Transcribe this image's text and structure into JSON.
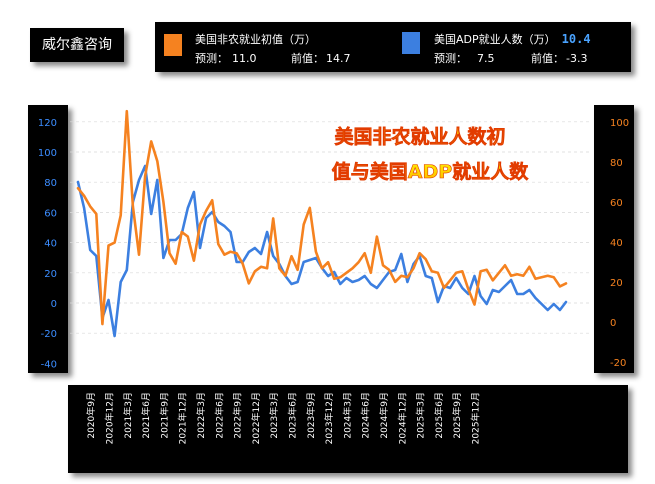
{
  "brand": "威尔鑫咨询",
  "legend": {
    "nfp": {
      "name": "美国非农就业初值（万）",
      "forecast_label": "预测：",
      "forecast": "11.0",
      "previous_label": "前值：",
      "previous": "14.7",
      "color": "#f58220"
    },
    "adp": {
      "name": "美国ADP就业人数（万）",
      "value": "10.4",
      "forecast_label": "预测：",
      "forecast": "7.5",
      "previous_label": "前值：",
      "previous": "-3.3",
      "color": "#3c7fe0"
    }
  },
  "chart_data": {
    "type": "line",
    "title": "美国非农就业人数初值与美国ADP就业人数",
    "x_tick_labels": [
      "2020年9月",
      "2020年12月",
      "2021年3月",
      "2021年6月",
      "2021年9月",
      "2021年12月",
      "2022年3月",
      "2022年6月",
      "2022年9月",
      "2022年12月",
      "2023年3月",
      "2023年6月",
      "2023年9月",
      "2023年12月",
      "2024年3月",
      "2024年6月",
      "2024年9月",
      "2024年12月",
      "2025年3月",
      "2025年6月",
      "2025年9月",
      "2025年12月"
    ],
    "x_start": "2020-07",
    "y_left": {
      "min": -40,
      "max": 120,
      "ticks": [
        -40,
        -20,
        0,
        20,
        40,
        60,
        80,
        100,
        120
      ]
    },
    "y_right": {
      "min": -20,
      "max": 100,
      "ticks": [
        -20,
        0,
        20,
        40,
        60,
        80,
        100
      ]
    },
    "grid": true,
    "series": [
      {
        "name": "美国非农就业初值（万）",
        "axis": "left",
        "color": "#f58220",
        "values": [
          76,
          71,
          64,
          59,
          -14,
          38,
          40,
          58,
          127,
          64,
          32,
          84,
          107,
          94,
          67,
          33,
          26,
          47,
          44,
          28,
          52,
          61,
          68,
          39,
          32,
          34,
          33,
          26,
          13,
          21,
          24,
          23,
          56,
          23,
          18,
          31,
          22,
          52,
          63,
          34,
          23,
          27,
          16,
          17,
          20,
          23,
          27,
          33,
          20,
          44,
          25,
          22,
          14,
          18,
          17,
          23,
          33,
          29,
          21,
          20,
          10,
          15,
          20,
          21,
          9,
          -1,
          21,
          22,
          15,
          20,
          25,
          18,
          19,
          18,
          24,
          16,
          17,
          18,
          17,
          11,
          13
        ]
      },
      {
        "name": "美国ADP就业人数（万）",
        "axis": "right",
        "color": "#3c7fe0",
        "values": [
          70,
          57,
          36,
          33,
          2,
          11,
          -7,
          20,
          26,
          60,
          71,
          78,
          54,
          71,
          32,
          41,
          41,
          44,
          57,
          65,
          37,
          52,
          55,
          50,
          48,
          45,
          30,
          30,
          35,
          37,
          34,
          45,
          33,
          29,
          23,
          19,
          20,
          30,
          31,
          32,
          27,
          23,
          25,
          19,
          22,
          20,
          21,
          23,
          19,
          17,
          21,
          25,
          26,
          34,
          20,
          29,
          33,
          23,
          22,
          10,
          18,
          17,
          22,
          17,
          14,
          23,
          13,
          9,
          16,
          15,
          18,
          21,
          14,
          14,
          16,
          12,
          9,
          6,
          9,
          6,
          10
        ]
      }
    ]
  }
}
